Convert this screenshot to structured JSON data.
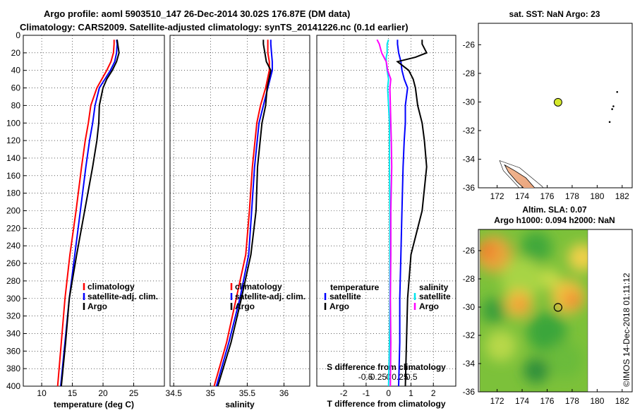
{
  "titles": {
    "line1": "Argo profile: aoml 5903510_147 26-Dec-2014 30.02S 176.87E (DM data)",
    "line2": "Climatology: CARS2009. Satellite-adjusted climatology: synTS_20141226.nc (0.1d earlier)"
  },
  "watermark": "©IMOS 14-Dec-2018 01:11:12",
  "colors": {
    "clim": "#ff0000",
    "sat": "#0000ff",
    "argo": "#000000",
    "sat_s": "#00e5ee",
    "argo_s": "#ff00ff"
  },
  "chart_data": [
    {
      "type": "line",
      "name": "temperature-panel",
      "xlabel": "temperature (deg C)",
      "ylabel": "",
      "xlim": [
        7,
        30
      ],
      "ylim": [
        0,
        400
      ],
      "xticks": [
        "10",
        "15",
        "20",
        "25"
      ],
      "yticks": [
        "0",
        "20",
        "40",
        "60",
        "80",
        "100",
        "120",
        "140",
        "160",
        "180",
        "200",
        "220",
        "240",
        "260",
        "280",
        "300",
        "320",
        "340",
        "360",
        "380",
        "400"
      ],
      "legend": [
        "climatology",
        "satellite-adj. clim.",
        "Argo"
      ],
      "depth": [
        5,
        10,
        20,
        30,
        40,
        50,
        60,
        80,
        100,
        120,
        150,
        200,
        250,
        300,
        350,
        400
      ],
      "series": [
        {
          "name": "climatology",
          "values": [
            21.8,
            21.8,
            21.7,
            21.3,
            20.6,
            19.8,
            19.0,
            18.0,
            17.6,
            17.1,
            16.5,
            15.6,
            14.6,
            13.8,
            13.2,
            12.6
          ]
        },
        {
          "name": "satellite-adj. clim.",
          "values": [
            22.2,
            22.3,
            22.2,
            21.9,
            21.2,
            20.3,
            19.4,
            18.7,
            18.3,
            17.8,
            17.2,
            16.3,
            15.4,
            14.5,
            13.8,
            13.1
          ]
        },
        {
          "name": "Argo",
          "values": [
            22.3,
            22.4,
            22.6,
            22.2,
            21.5,
            20.6,
            20.0,
            19.4,
            19.3,
            19.0,
            18.3,
            17.0,
            15.7,
            14.5,
            13.9,
            13.2
          ]
        }
      ]
    },
    {
      "type": "line",
      "name": "salinity-panel",
      "xlabel": "salinity",
      "ylabel": "",
      "xlim": [
        34.45,
        36.35
      ],
      "ylim": [
        0,
        400
      ],
      "xticks": [
        "34.5",
        "35",
        "35.5",
        "36"
      ],
      "legend": [
        "climatology",
        "satellite-adj. clim.",
        "Argo"
      ],
      "depth": [
        5,
        10,
        20,
        30,
        40,
        60,
        80,
        100,
        150,
        200,
        250,
        300,
        350,
        400
      ],
      "series": [
        {
          "name": "climatology",
          "values": [
            35.78,
            35.78,
            35.78,
            35.8,
            35.8,
            35.75,
            35.68,
            35.63,
            35.57,
            35.53,
            35.48,
            35.35,
            35.22,
            35.05
          ]
        },
        {
          "name": "satellite-adj. clim.",
          "values": [
            35.82,
            35.82,
            35.83,
            35.84,
            35.84,
            35.78,
            35.72,
            35.66,
            35.6,
            35.56,
            35.52,
            35.4,
            35.25,
            35.08
          ]
        },
        {
          "name": "Argo",
          "values": [
            35.72,
            35.72,
            35.74,
            35.76,
            35.82,
            35.77,
            35.75,
            35.7,
            35.64,
            35.62,
            35.55,
            35.42,
            35.28,
            35.1
          ]
        }
      ]
    },
    {
      "type": "line",
      "name": "difference-panel",
      "xlabel": "T difference from climatology",
      "x2label": "S difference from climatology",
      "xlim": [
        -3.2,
        3.0
      ],
      "ylim": [
        0,
        400
      ],
      "xticks": [
        "-2",
        "-1",
        "0",
        "1",
        "2"
      ],
      "x2ticks": [
        "-0.5",
        "-0.25",
        "0",
        "0.25",
        "0.5"
      ],
      "legend_left_title": "temperature",
      "legend_right_title": "salinity",
      "legend_left": [
        "satellite",
        "Argo"
      ],
      "legend_right": [
        "satellite",
        "Argo"
      ],
      "depth": [
        5,
        10,
        20,
        25,
        30,
        40,
        50,
        60,
        80,
        100,
        120,
        150,
        200,
        250,
        300,
        350,
        400
      ],
      "series": [
        {
          "name": "T satellite",
          "values": [
            0.4,
            0.4,
            0.45,
            0.5,
            0.55,
            0.6,
            0.7,
            0.85,
            0.75,
            0.75,
            0.7,
            0.65,
            0.6,
            0.55,
            0.5,
            0.5,
            0.45
          ]
        },
        {
          "name": "T Argo",
          "values": [
            1.5,
            1.5,
            1.7,
            1.2,
            0.4,
            0.9,
            1.1,
            1.2,
            1.3,
            1.5,
            1.6,
            1.7,
            1.5,
            1.0,
            0.85,
            0.8,
            0.75
          ]
        },
        {
          "name": "S satellite",
          "values": [
            0.0,
            -0.03,
            -0.03,
            -0.05,
            -0.05,
            -0.03,
            0.0,
            -0.02,
            0.0,
            0.02,
            0.02,
            0.02,
            0.03,
            0.03,
            0.03,
            0.02,
            0.0
          ]
        },
        {
          "name": "S Argo",
          "values": [
            -0.25,
            -0.2,
            -0.15,
            -0.1,
            -0.05,
            -0.02,
            0.05,
            0.03,
            0.04,
            0.05,
            0.06,
            0.07,
            0.05,
            0.05,
            0.04,
            0.05,
            0.04
          ]
        }
      ]
    },
    {
      "type": "scatter",
      "name": "sst-map",
      "title": "sat. SST: NaN Argo: 23",
      "xlim": [
        170.5,
        182.8
      ],
      "ylim": [
        -36,
        -24.5
      ],
      "xticks": [
        "172",
        "174",
        "176",
        "178",
        "180",
        "182"
      ],
      "yticks": [
        "-26",
        "-28",
        "-30",
        "-32",
        "-34",
        "-36"
      ],
      "argo_position": [
        176.87,
        -30.02
      ]
    },
    {
      "type": "heatmap",
      "name": "sla-map",
      "title_line1": "Altim. SLA: 0.07",
      "title_line2": "Argo h1000: 0.094 h2000: NaN",
      "xlim": [
        170.5,
        182.8
      ],
      "ylim": [
        -36,
        -24.5
      ],
      "xticks": [
        "172",
        "174",
        "176",
        "178",
        "180",
        "182"
      ],
      "yticks": [
        "-26",
        "-28",
        "-30",
        "-32",
        "-34",
        "-36"
      ],
      "argo_position": [
        176.87,
        -30.02
      ]
    }
  ]
}
